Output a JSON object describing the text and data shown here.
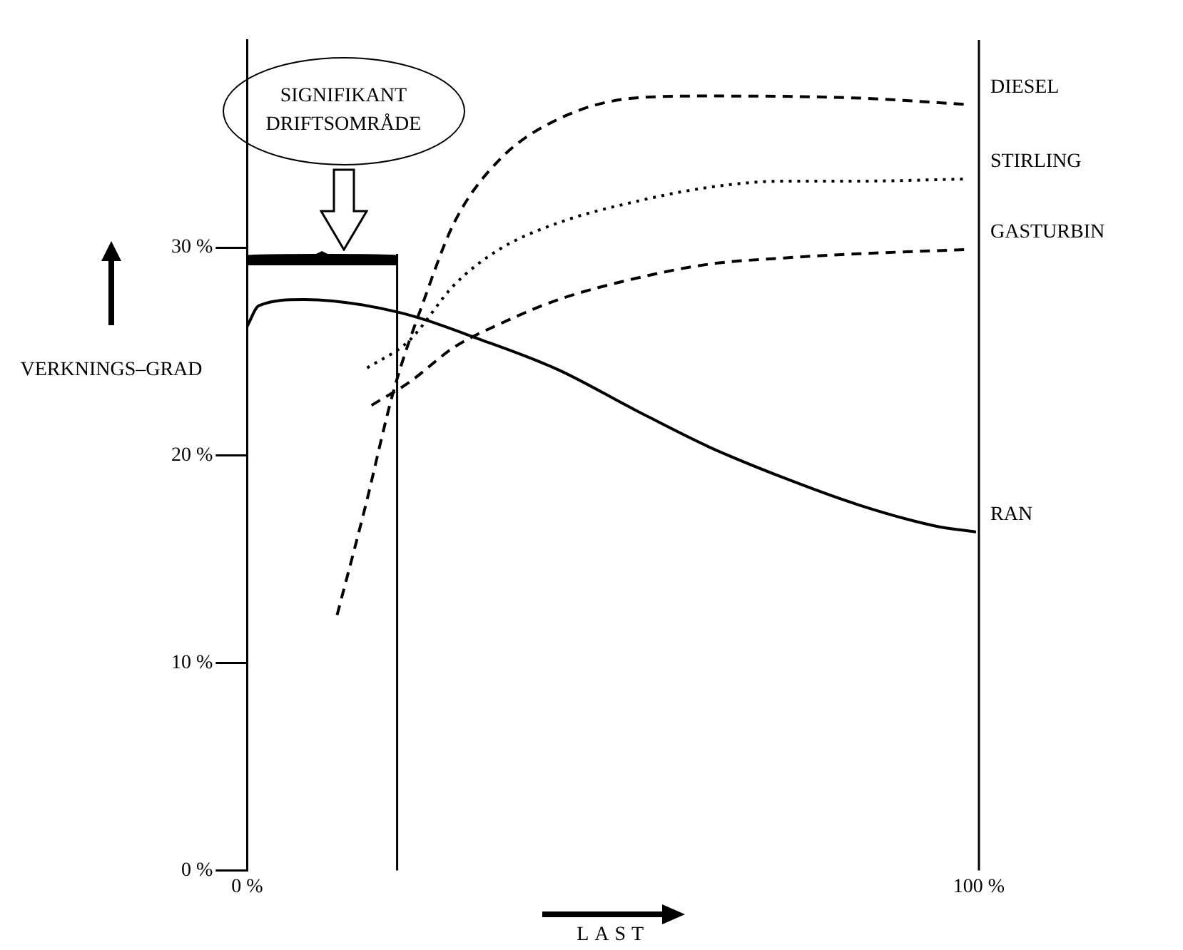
{
  "chart_data": {
    "type": "line",
    "xlabel": "LAST",
    "ylabel": "VERKNINGS–GRAD",
    "xlim": [
      0,
      100
    ],
    "xticks": [
      {
        "value": 0,
        "label": "0 %"
      },
      {
        "value": 100,
        "label": "100 %"
      }
    ],
    "ylim": [
      0,
      40
    ],
    "yticks": [
      {
        "value": 0,
        "label": "0 %"
      },
      {
        "value": 10,
        "label": "10 %"
      },
      {
        "value": 20,
        "label": "20 %"
      },
      {
        "value": 30,
        "label": "30 %"
      }
    ],
    "grid": false,
    "legend": false,
    "ref_lines": [
      {
        "axis": "x",
        "value": 20.5
      }
    ],
    "annotations": [
      "SIGNIFIKANT DRIFTSOMRÅDE"
    ],
    "series": [
      {
        "name": "DIESEL",
        "color": "#000000",
        "line_style": "dashed",
        "x": [
          12.3,
          16,
          20.1,
          24.2,
          28.3,
          34.4,
          42.6,
          52.9,
          63.1,
          83.6,
          98
        ],
        "values": [
          12.3,
          17.3,
          23.2,
          27.5,
          31.2,
          34.2,
          36.2,
          37.2,
          37.3,
          37.2,
          36.9
        ]
      },
      {
        "name": "STIRLING",
        "color": "#000000",
        "line_style": "dotted",
        "x": [
          16.4,
          22.1,
          28.3,
          34.4,
          42.6,
          52.9,
          63.1,
          73.4,
          83.6,
          98
        ],
        "values": [
          24.2,
          25.5,
          28.2,
          29.9,
          31.2,
          32.2,
          32.9,
          33.2,
          33.2,
          33.3
        ]
      },
      {
        "name": "GASTURBIN",
        "color": "#000000",
        "line_style": "dashed",
        "x": [
          17,
          22.1,
          28.3,
          34.4,
          42.6,
          52.9,
          63.1,
          73.4,
          83.6,
          98
        ],
        "values": [
          22.4,
          23.5,
          25.2,
          26.3,
          27.5,
          28.5,
          29.2,
          29.5,
          29.7,
          29.9
        ]
      },
      {
        "name": "RAN",
        "color": "#000000",
        "line_style": "solid",
        "x": [
          0,
          1.6,
          7.8,
          20.5,
          32.4,
          42.6,
          52.9,
          63.1,
          73.4,
          83.6,
          93.9,
          99.6
        ],
        "values": [
          26.2,
          27.2,
          27.5,
          26.9,
          25.5,
          24.1,
          22.2,
          20.4,
          18.9,
          17.6,
          16.6,
          16.3
        ]
      }
    ]
  }
}
